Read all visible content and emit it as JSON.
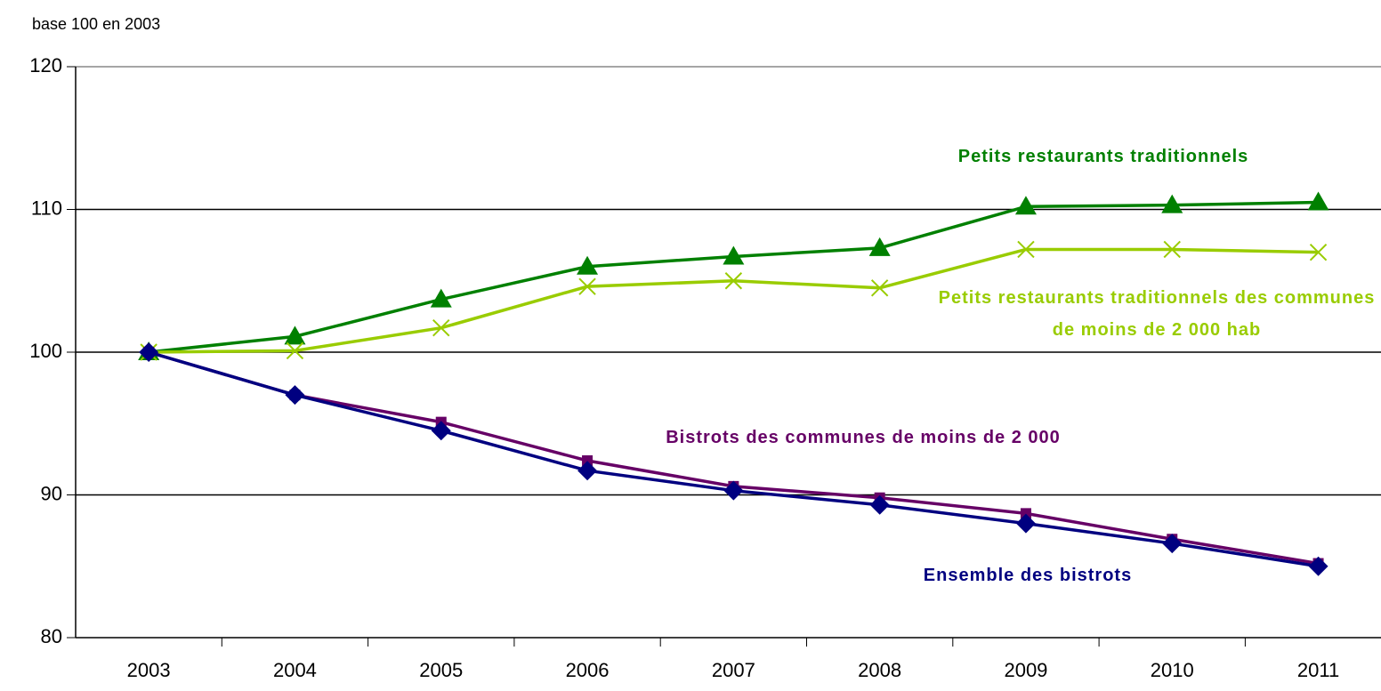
{
  "chart_data": {
    "type": "line",
    "subtitle": "base 100 en 2003",
    "categories": [
      "2003",
      "2004",
      "2005",
      "2006",
      "2007",
      "2008",
      "2009",
      "2010",
      "2011"
    ],
    "series": [
      {
        "name": "Petits restaurants traditionnels",
        "color": "#008000",
        "marker": "triangle",
        "values": [
          100,
          101.1,
          103.7,
          106,
          106.7,
          107.3,
          110.2,
          110.3,
          110.5
        ]
      },
      {
        "name": "Petits restaurants traditionnels des communes de moins de 2 000 hab",
        "color": "#99cc00",
        "marker": "x",
        "values": [
          100,
          100.1,
          101.7,
          104.6,
          105,
          104.5,
          107.2,
          107.2,
          107
        ]
      },
      {
        "name": "Bistrots des communes de moins de 2 000",
        "color": "#660066",
        "marker": "square",
        "values": [
          100,
          97,
          95.1,
          92.4,
          90.6,
          89.8,
          88.7,
          86.9,
          85.2
        ]
      },
      {
        "name": "Ensemble des bistrots",
        "color": "#000080",
        "marker": "diamond",
        "values": [
          100,
          97,
          94.5,
          91.7,
          90.3,
          89.3,
          88,
          86.6,
          85
        ]
      }
    ],
    "ylim": [
      80,
      120
    ],
    "yticks": [
      80,
      90,
      100,
      110,
      120
    ],
    "grid": true
  }
}
